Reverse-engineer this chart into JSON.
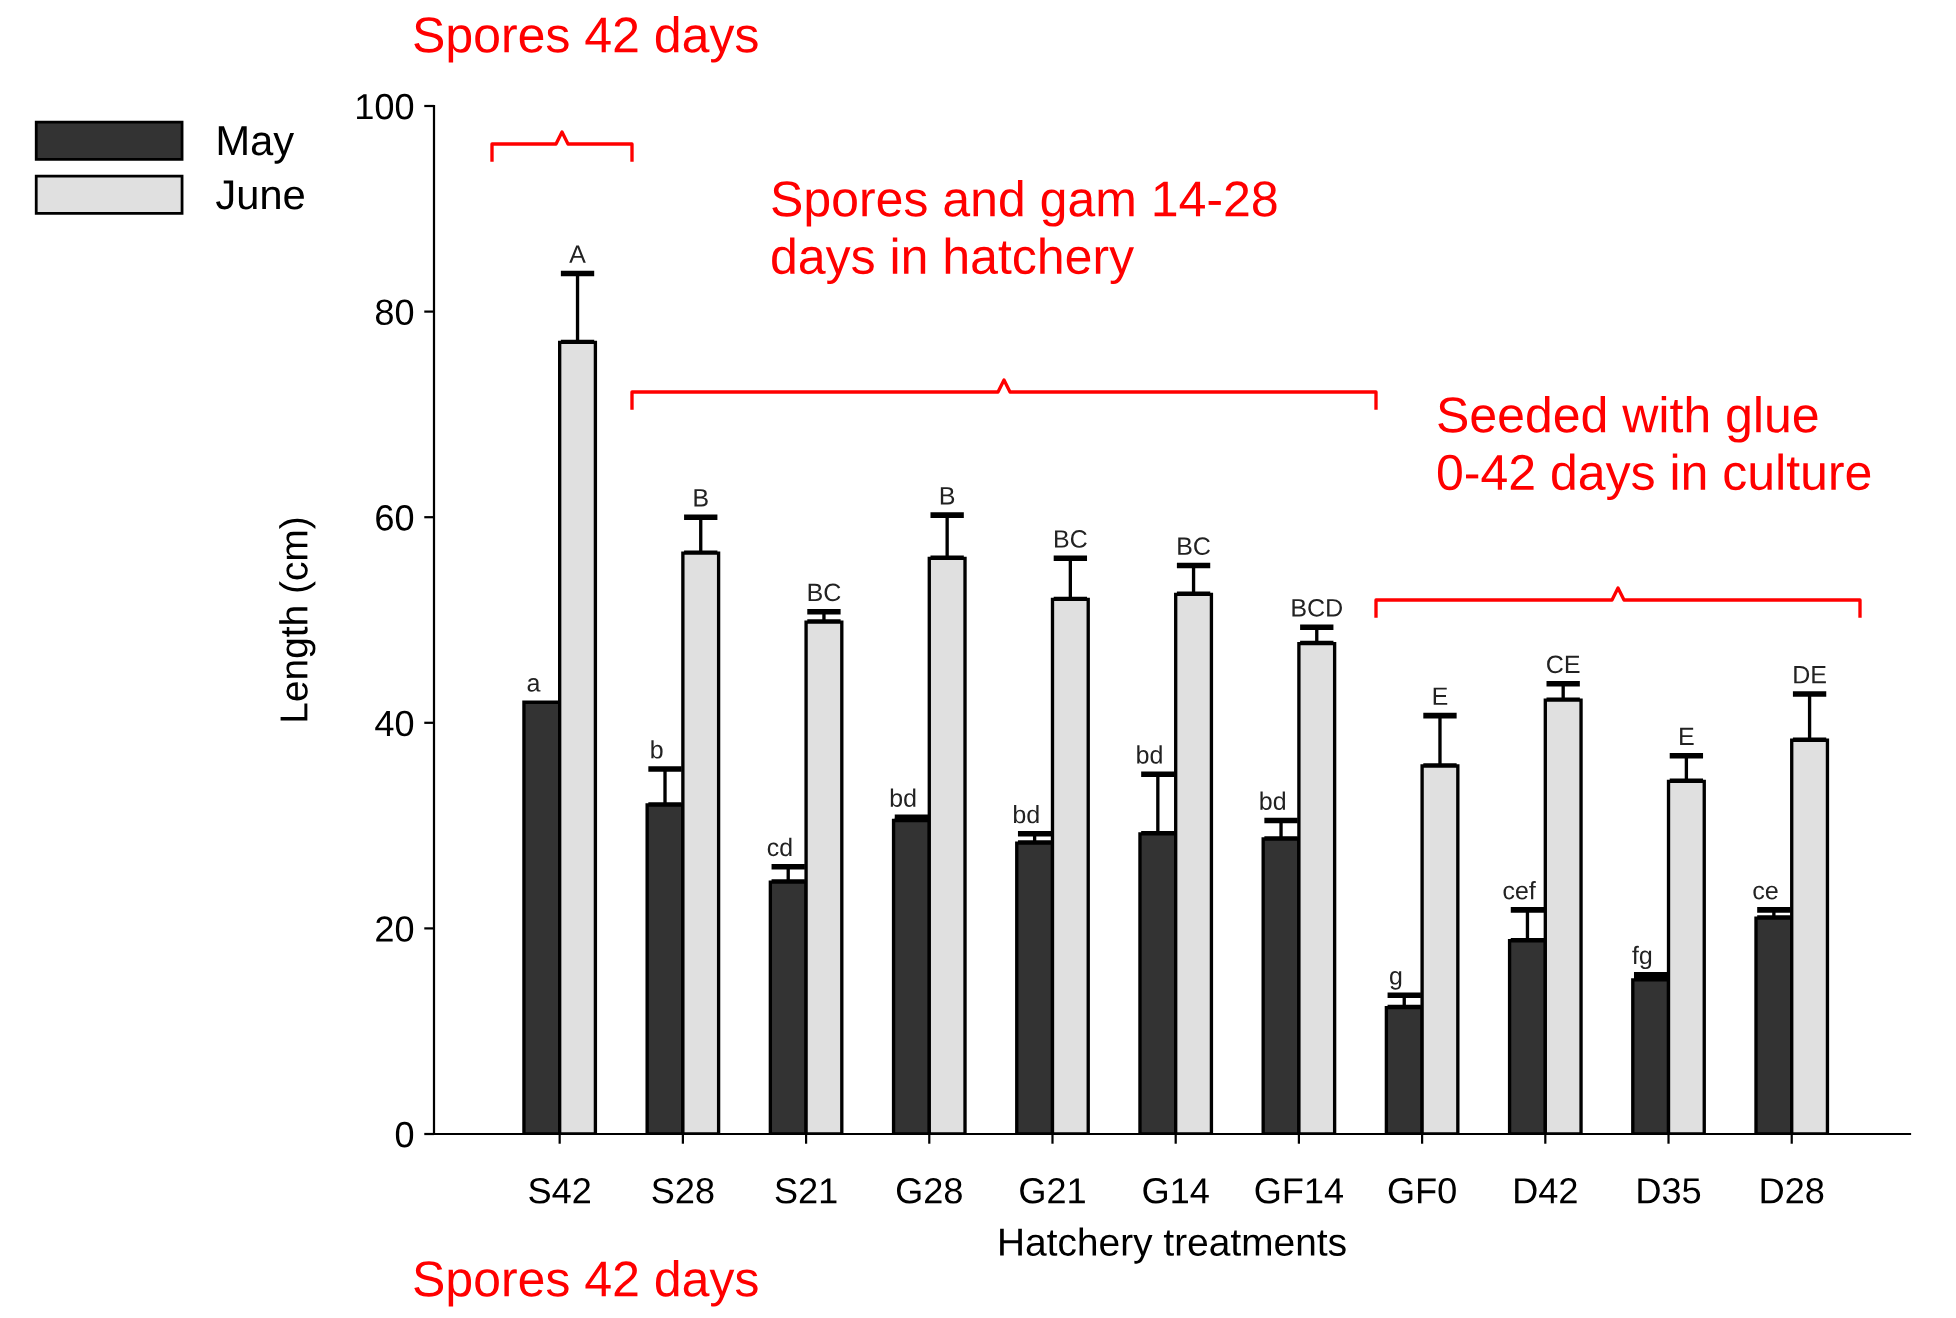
{
  "chart_data": {
    "type": "bar",
    "xlabel": "Hatchery treatments",
    "ylabel": "Length (cm)",
    "categories": [
      "S42",
      "S28",
      "S21",
      "G28",
      "G21",
      "G14",
      "GF14",
      "GF0",
      "D42",
      "D35",
      "D28"
    ],
    "series": [
      {
        "name": "May",
        "color": "#333333",
        "values": [
          42.0,
          32.0,
          24.5,
          30.5,
          28.3,
          29.2,
          28.7,
          12.3,
          18.8,
          15.0,
          21.0
        ],
        "errors": [
          null,
          [
            32.0,
            35.5
          ],
          [
            24.5,
            26.0
          ],
          [
            30.5,
            30.8
          ],
          [
            28.3,
            29.2
          ],
          [
            29.2,
            35.0
          ],
          [
            28.7,
            30.5
          ],
          [
            12.3,
            13.5
          ],
          [
            18.8,
            21.8
          ],
          [
            15.0,
            15.5
          ],
          [
            21.0,
            21.8
          ]
        ],
        "value_labels": [
          "a",
          "b",
          "cd",
          "bd",
          "bd",
          "bd",
          "bd",
          "g",
          "cef",
          "fg",
          "ce"
        ]
      },
      {
        "name": "June",
        "color": "#e0e0e0",
        "values": [
          77.0,
          56.5,
          49.8,
          56.0,
          52.0,
          52.5,
          47.7,
          35.8,
          42.2,
          34.3,
          38.3
        ],
        "errors": [
          [
            77.0,
            83.7
          ],
          [
            56.5,
            60.0
          ],
          [
            49.8,
            50.8
          ],
          [
            56.0,
            60.2
          ],
          [
            52.0,
            56.0
          ],
          [
            52.5,
            55.3
          ],
          [
            47.7,
            49.3
          ],
          [
            35.8,
            40.7
          ],
          [
            42.2,
            43.8
          ],
          [
            34.3,
            36.8
          ],
          [
            38.3,
            42.8
          ]
        ],
        "value_labels": [
          "A",
          "B",
          "BC",
          "B",
          "BC",
          "BC",
          "BCD",
          "E",
          "CE",
          "E",
          "DE"
        ]
      }
    ],
    "ylim": [
      0,
      100
    ],
    "yticks": [
      0,
      20,
      40,
      60,
      80,
      100
    ],
    "grid": false,
    "legend": "top left",
    "annotations": [
      "Spores 42 days",
      "Spores and gam 14-28\ndays in hatchery",
      "Seeded with glue\n0-42 days in culture",
      "Spores 42 days"
    ]
  }
}
